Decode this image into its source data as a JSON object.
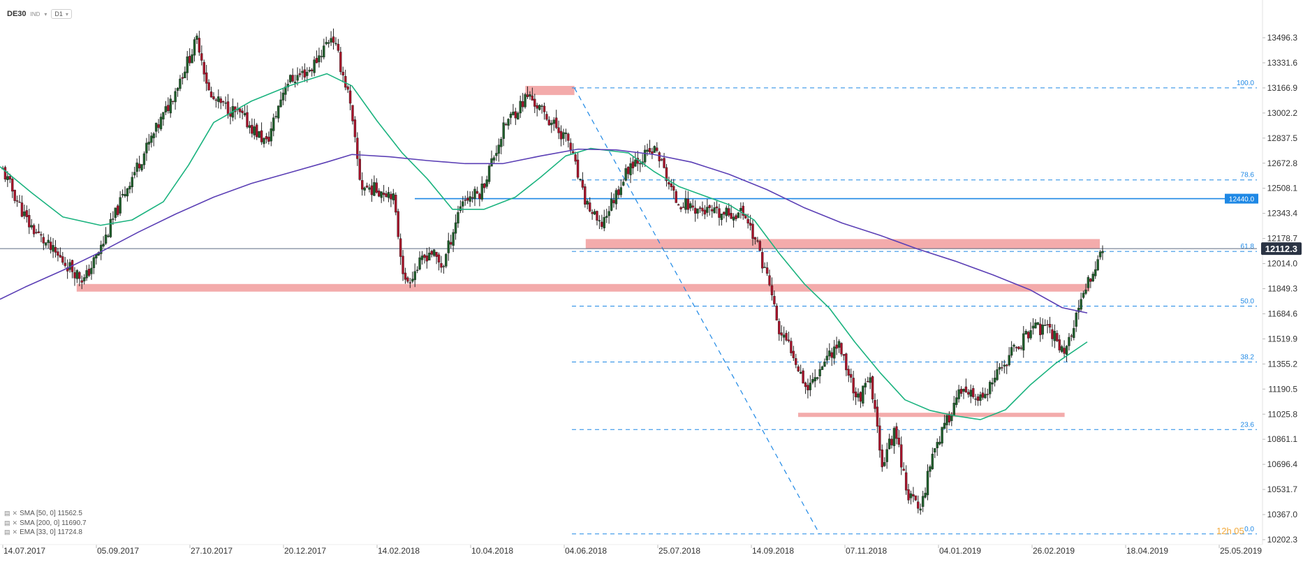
{
  "toolbar": {
    "symbol": "DE30",
    "symbol_sub": "IND",
    "timeframe": "D1",
    "dropdown_icon": "chevron-down-icon"
  },
  "indicators": [
    {
      "label": "SMA [50, 0] 11562.5",
      "color": "#1bb37f"
    },
    {
      "label": "SMA [200, 0] 11690.7",
      "color": "#5b3fb5"
    },
    {
      "label": "EMA [33, 0] 11724.8",
      "color": "#777777"
    }
  ],
  "countdown": "12h 05",
  "chart_data": {
    "type": "candlestick",
    "y_ticks": [
      "13496.3",
      "13331.6",
      "13166.9",
      "13002.2",
      "12837.5",
      "12672.8",
      "12508.1",
      "12343.4",
      "12178.7",
      "12014.0",
      "11849.3",
      "11684.6",
      "11519.9",
      "11355.2",
      "11190.5",
      "11025.8",
      "10861.1",
      "10696.4",
      "10531.7",
      "10367.0",
      "10202.3"
    ],
    "x_ticks": [
      "14.07.2017",
      "05.09.2017",
      "27.10.2017",
      "20.12.2017",
      "14.02.2018",
      "10.04.2018",
      "04.06.2018",
      "25.07.2018",
      "14.09.2018",
      "07.11.2018",
      "04.01.2019",
      "26.02.2019",
      "18.04.2019",
      "25.05.2019"
    ],
    "ylim": [
      10202.3,
      13496.3
    ],
    "last_price": "12112.3",
    "horizontal_level": "12440.0",
    "fibonacci": [
      {
        "label": "100.0",
        "value": 13166.9
      },
      {
        "label": "78.6",
        "value": 12563
      },
      {
        "label": "61.8",
        "value": 12094
      },
      {
        "label": "50.0",
        "value": 11735
      },
      {
        "label": "38.2",
        "value": 11368
      },
      {
        "label": "23.6",
        "value": 10925
      },
      {
        "label": "0.0",
        "value": 10240
      }
    ],
    "zones": [
      {
        "name": "zone-top",
        "y_from": 13120,
        "y_to": 13180,
        "x_from": 0.418,
        "x_to": 0.457
      },
      {
        "name": "zone-resistance",
        "y_from": 12110,
        "y_to": 12175,
        "x_from": 0.466,
        "x_to": 0.875
      },
      {
        "name": "zone-support",
        "y_from": 11830,
        "y_to": 11880,
        "x_from": 0.061,
        "x_to": 0.867
      },
      {
        "name": "zone-low",
        "y_from": 11012,
        "y_to": 11035,
        "x_from": 0.635,
        "x_to": 0.847
      }
    ],
    "price_path": [
      [
        0,
        12625
      ],
      [
        0.02,
        12280
      ],
      [
        0.04,
        12090
      ],
      [
        0.065,
        11905
      ],
      [
        0.08,
        12150
      ],
      [
        0.1,
        12540
      ],
      [
        0.13,
        13020
      ],
      [
        0.155,
        13490
      ],
      [
        0.165,
        13100
      ],
      [
        0.19,
        12980
      ],
      [
        0.21,
        12800
      ],
      [
        0.225,
        13200
      ],
      [
        0.245,
        13290
      ],
      [
        0.262,
        13520
      ],
      [
        0.275,
        13120
      ],
      [
        0.285,
        12520
      ],
      [
        0.31,
        12480
      ],
      [
        0.32,
        11880
      ],
      [
        0.34,
        12100
      ],
      [
        0.35,
        11990
      ],
      [
        0.365,
        12430
      ],
      [
        0.38,
        12480
      ],
      [
        0.4,
        12930
      ],
      [
        0.418,
        13120
      ],
      [
        0.43,
        13000
      ],
      [
        0.45,
        12820
      ],
      [
        0.462,
        12450
      ],
      [
        0.475,
        12250
      ],
      [
        0.5,
        12680
      ],
      [
        0.52,
        12760
      ],
      [
        0.535,
        12430
      ],
      [
        0.55,
        12380
      ],
      [
        0.57,
        12330
      ],
      [
        0.59,
        12350
      ],
      [
        0.6,
        12140
      ],
      [
        0.61,
        11880
      ],
      [
        0.618,
        11550
      ],
      [
        0.628,
        11450
      ],
      [
        0.64,
        11190
      ],
      [
        0.655,
        11400
      ],
      [
        0.665,
        11490
      ],
      [
        0.68,
        11120
      ],
      [
        0.69,
        11240
      ],
      [
        0.7,
        10700
      ],
      [
        0.71,
        10930
      ],
      [
        0.72,
        10500
      ],
      [
        0.73,
        10400
      ],
      [
        0.74,
        10790
      ],
      [
        0.75,
        10950
      ],
      [
        0.76,
        11160
      ],
      [
        0.78,
        11120
      ],
      [
        0.8,
        11400
      ],
      [
        0.82,
        11600
      ],
      [
        0.835,
        11560
      ],
      [
        0.845,
        11430
      ],
      [
        0.855,
        11680
      ],
      [
        0.865,
        11920
      ],
      [
        0.875,
        12112
      ]
    ],
    "sma50_path": [
      [
        0,
        12650
      ],
      [
        0.025,
        12480
      ],
      [
        0.05,
        12320
      ],
      [
        0.08,
        12265
      ],
      [
        0.105,
        12300
      ],
      [
        0.13,
        12420
      ],
      [
        0.15,
        12660
      ],
      [
        0.17,
        12940
      ],
      [
        0.2,
        13080
      ],
      [
        0.23,
        13180
      ],
      [
        0.26,
        13260
      ],
      [
        0.28,
        13180
      ],
      [
        0.3,
        12950
      ],
      [
        0.32,
        12740
      ],
      [
        0.34,
        12570
      ],
      [
        0.36,
        12370
      ],
      [
        0.385,
        12370
      ],
      [
        0.41,
        12450
      ],
      [
        0.43,
        12580
      ],
      [
        0.45,
        12720
      ],
      [
        0.47,
        12770
      ],
      [
        0.5,
        12740
      ],
      [
        0.52,
        12620
      ],
      [
        0.54,
        12520
      ],
      [
        0.56,
        12460
      ],
      [
        0.58,
        12400
      ],
      [
        0.6,
        12300
      ],
      [
        0.62,
        12080
      ],
      [
        0.64,
        11880
      ],
      [
        0.66,
        11720
      ],
      [
        0.68,
        11500
      ],
      [
        0.7,
        11300
      ],
      [
        0.72,
        11120
      ],
      [
        0.74,
        11050
      ],
      [
        0.76,
        11015
      ],
      [
        0.78,
        10990
      ],
      [
        0.8,
        11055
      ],
      [
        0.82,
        11220
      ],
      [
        0.84,
        11360
      ],
      [
        0.865,
        11500
      ]
    ],
    "sma200_path": [
      [
        0,
        11780
      ],
      [
        0.02,
        11860
      ],
      [
        0.05,
        11970
      ],
      [
        0.08,
        12090
      ],
      [
        0.11,
        12220
      ],
      [
        0.14,
        12340
      ],
      [
        0.17,
        12450
      ],
      [
        0.2,
        12540
      ],
      [
        0.23,
        12610
      ],
      [
        0.26,
        12680
      ],
      [
        0.28,
        12730
      ],
      [
        0.31,
        12715
      ],
      [
        0.34,
        12690
      ],
      [
        0.37,
        12670
      ],
      [
        0.4,
        12670
      ],
      [
        0.43,
        12720
      ],
      [
        0.46,
        12765
      ],
      [
        0.49,
        12760
      ],
      [
        0.52,
        12730
      ],
      [
        0.55,
        12680
      ],
      [
        0.58,
        12600
      ],
      [
        0.61,
        12500
      ],
      [
        0.64,
        12380
      ],
      [
        0.67,
        12280
      ],
      [
        0.7,
        12200
      ],
      [
        0.73,
        12110
      ],
      [
        0.76,
        12030
      ],
      [
        0.79,
        11940
      ],
      [
        0.82,
        11840
      ],
      [
        0.845,
        11725
      ],
      [
        0.865,
        11690
      ]
    ]
  }
}
